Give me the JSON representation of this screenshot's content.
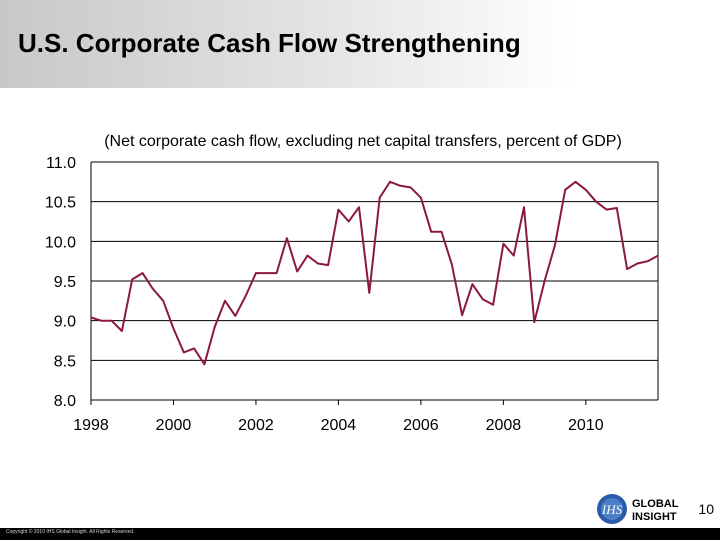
{
  "slide": {
    "title": "U.S. Corporate Cash Flow Strengthening",
    "page_number": "10",
    "copyright": "Copyright © 2010 IHS Global Insight. All Rights Reserved.",
    "logo": {
      "mark": "IHS",
      "line1": "GLOBAL",
      "line2": "INSIGHT"
    }
  },
  "colors": {
    "series": "#8b1a3a",
    "grid": "#000000",
    "title_bar": "#d0d0d0"
  },
  "chart_data": {
    "type": "line",
    "title": "",
    "subtitle": "(Net corporate cash flow, excluding net capital transfers, percent of GDP)",
    "xlabel": "",
    "ylabel": "",
    "xlim": [
      1998,
      2011.75
    ],
    "ylim": [
      8.0,
      11.0
    ],
    "grid": "horizontal",
    "x_ticks": [
      1998,
      2000,
      2002,
      2004,
      2006,
      2008,
      2010
    ],
    "x_tick_labels": [
      "1998",
      "2000",
      "2002",
      "2004",
      "2006",
      "2008",
      "2010"
    ],
    "y_ticks": [
      8.0,
      8.5,
      9.0,
      9.5,
      10.0,
      10.5,
      11.0
    ],
    "y_tick_labels": [
      "8.0",
      "8.5",
      "9.0",
      "9.5",
      "10.0",
      "10.5",
      "11.0"
    ],
    "series": [
      {
        "name": "",
        "x": [
          1998.0,
          1998.25,
          1998.5,
          1998.75,
          1999.0,
          1999.25,
          1999.5,
          1999.75,
          2000.0,
          2000.25,
          2000.5,
          2000.75,
          2001.0,
          2001.25,
          2001.5,
          2001.75,
          2002.0,
          2002.25,
          2002.5,
          2002.75,
          2003.0,
          2003.25,
          2003.5,
          2003.75,
          2004.0,
          2004.25,
          2004.5,
          2004.75,
          2005.0,
          2005.25,
          2005.5,
          2005.75,
          2006.0,
          2006.25,
          2006.5,
          2006.75,
          2007.0,
          2007.25,
          2007.5,
          2007.75,
          2008.0,
          2008.25,
          2008.5,
          2008.75,
          2009.0,
          2009.25,
          2009.5,
          2009.75,
          2010.0,
          2010.25,
          2010.5,
          2010.75,
          2011.0,
          2011.25,
          2011.5,
          2011.75
        ],
        "values": [
          9.04,
          9.0,
          9.0,
          8.87,
          9.52,
          9.6,
          9.4,
          9.25,
          8.9,
          8.6,
          8.65,
          8.45,
          8.92,
          9.25,
          9.06,
          9.31,
          9.6,
          9.6,
          9.6,
          10.04,
          9.62,
          9.82,
          9.72,
          9.7,
          10.4,
          10.25,
          10.43,
          9.35,
          10.55,
          10.75,
          10.7,
          10.68,
          10.55,
          10.12,
          10.12,
          9.71,
          9.07,
          9.46,
          9.27,
          9.2,
          9.97,
          9.82,
          10.43,
          8.98,
          9.5,
          9.95,
          10.65,
          10.75,
          10.65,
          10.5,
          10.4,
          10.42,
          9.65,
          9.72,
          9.75,
          9.82
        ]
      }
    ]
  }
}
